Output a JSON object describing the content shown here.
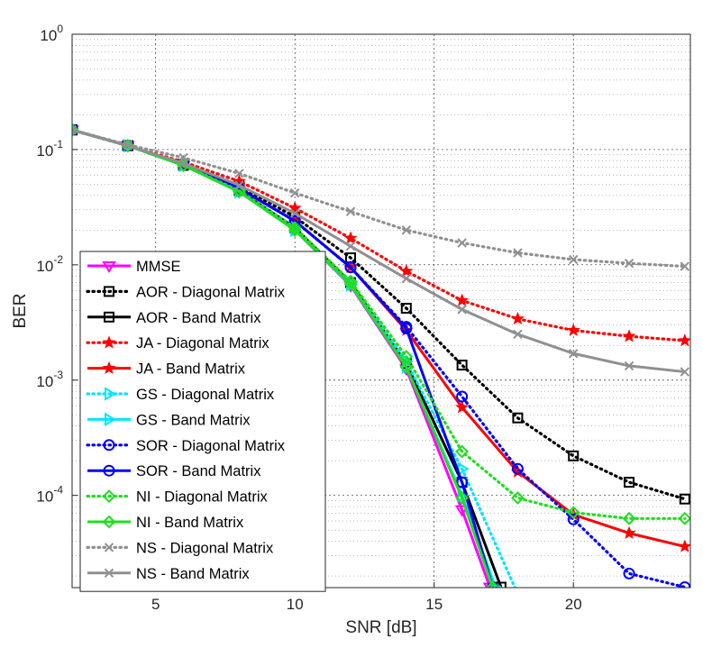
{
  "chart_data": {
    "type": "line",
    "xlabel": "SNR [dB]",
    "ylabel": "BER",
    "yscale": "log",
    "xlim": [
      2,
      24.2
    ],
    "ylim_log10": [
      -4.8,
      0
    ],
    "xticks": [
      5,
      10,
      15,
      20
    ],
    "yticks": [
      {
        "exp": 0,
        "base": "10",
        "sup": "0"
      },
      {
        "exp": -1,
        "base": "10",
        "sup": "-1"
      },
      {
        "exp": -2,
        "base": "10",
        "sup": "-2"
      },
      {
        "exp": -3,
        "base": "10",
        "sup": "-3"
      },
      {
        "exp": -4,
        "base": "10",
        "sup": "-4"
      }
    ],
    "grid": true,
    "legend_position": "bottom-left",
    "series": [
      {
        "name": "MMSE",
        "color": "#ff00ff",
        "style": "solid",
        "marker": "triangle-down",
        "x": [
          2,
          4,
          6,
          8,
          10,
          12,
          14,
          16,
          17.0
        ],
        "y": [
          0.148,
          0.108,
          0.073,
          0.043,
          0.02,
          0.0066,
          0.00125,
          7.5e-05,
          1.6e-05
        ]
      },
      {
        "name": "AOR - Diagonal Matrix",
        "color": "#000000",
        "style": "dotted",
        "marker": "square",
        "x": [
          2,
          4,
          6,
          8,
          10,
          12,
          14,
          16,
          18,
          20,
          22,
          24
        ],
        "y": [
          0.148,
          0.108,
          0.075,
          0.048,
          0.026,
          0.0115,
          0.0042,
          0.00135,
          0.00047,
          0.00022,
          0.00013,
          9.3e-05
        ]
      },
      {
        "name": "AOR - Band Matrix",
        "color": "#000000",
        "style": "solid",
        "marker": "square",
        "x": [
          2,
          4,
          6,
          8,
          10,
          12,
          14,
          16,
          17.4
        ],
        "y": [
          0.148,
          0.108,
          0.073,
          0.044,
          0.021,
          0.007,
          0.0014,
          0.00013,
          1.6e-05
        ]
      },
      {
        "name": "JA - Diagonal Matrix",
        "color": "#ff0000",
        "style": "dotted",
        "marker": "star",
        "x": [
          2,
          4,
          6,
          8,
          10,
          12,
          14,
          16,
          18,
          20,
          22,
          24
        ],
        "y": [
          0.148,
          0.108,
          0.078,
          0.053,
          0.031,
          0.017,
          0.0088,
          0.0049,
          0.0034,
          0.0027,
          0.0024,
          0.0022
        ]
      },
      {
        "name": "JA - Band Matrix",
        "color": "#ff0000",
        "style": "solid",
        "marker": "star",
        "x": [
          2,
          4,
          6,
          8,
          10,
          12,
          14,
          16,
          18,
          20,
          22,
          24
        ],
        "y": [
          0.148,
          0.108,
          0.075,
          0.046,
          0.024,
          0.0095,
          0.0027,
          0.00058,
          0.00016,
          6.8e-05,
          4.7e-05,
          3.6e-05
        ]
      },
      {
        "name": "GS - Diagonal Matrix",
        "color": "#00e5ff",
        "style": "dotted",
        "marker": "triangle-right",
        "x": [
          2,
          4,
          6,
          8,
          10,
          12,
          14,
          16,
          18
        ],
        "y": [
          0.148,
          0.108,
          0.073,
          0.044,
          0.021,
          0.007,
          0.00145,
          0.00017,
          1.4e-05
        ]
      },
      {
        "name": "GS - Band Matrix",
        "color": "#00e5ff",
        "style": "solid",
        "marker": "triangle-right",
        "x": [
          2,
          4,
          6,
          8,
          10,
          12,
          14,
          16,
          17.2
        ],
        "y": [
          0.148,
          0.108,
          0.073,
          0.043,
          0.02,
          0.0067,
          0.0013,
          0.0001,
          1.6e-05
        ]
      },
      {
        "name": "SOR - Diagonal Matrix",
        "color": "#0000ff",
        "style": "dotted",
        "marker": "circle",
        "x": [
          2,
          4,
          6,
          8,
          10,
          12,
          14,
          16,
          18,
          20,
          22,
          24
        ],
        "y": [
          0.148,
          0.108,
          0.075,
          0.046,
          0.024,
          0.0095,
          0.0029,
          0.00072,
          0.00017,
          6.2e-05,
          2.1e-05,
          1.6e-05
        ]
      },
      {
        "name": "SOR - Band Matrix",
        "color": "#0000ff",
        "style": "solid",
        "marker": "circle",
        "x": [
          2,
          4,
          6,
          8,
          10,
          12,
          14,
          16,
          17.1
        ],
        "y": [
          0.148,
          0.108,
          0.075,
          0.046,
          0.024,
          0.0095,
          0.0028,
          0.00013,
          1.6e-05
        ]
      },
      {
        "name": "NI - Diagonal Matrix",
        "color": "#22dd22",
        "style": "dotted",
        "marker": "diamond",
        "x": [
          2,
          4,
          6,
          8,
          10,
          12,
          14,
          16,
          18,
          20,
          22,
          24
        ],
        "y": [
          0.148,
          0.108,
          0.073,
          0.044,
          0.021,
          0.0072,
          0.0016,
          0.00024,
          9.5e-05,
          7.1e-05,
          6.3e-05,
          6.3e-05
        ]
      },
      {
        "name": "NI - Band Matrix",
        "color": "#22dd22",
        "style": "solid",
        "marker": "diamond",
        "x": [
          2,
          4,
          6,
          8,
          10,
          12,
          14,
          16,
          17.1
        ],
        "y": [
          0.148,
          0.108,
          0.073,
          0.043,
          0.02,
          0.0068,
          0.0013,
          9.5e-05,
          1.6e-05
        ]
      },
      {
        "name": "NS - Diagonal Matrix",
        "color": "#909090",
        "style": "dotted",
        "marker": "x",
        "x": [
          2,
          4,
          6,
          8,
          10,
          12,
          14,
          16,
          18,
          20,
          22,
          24
        ],
        "y": [
          0.148,
          0.11,
          0.085,
          0.062,
          0.042,
          0.029,
          0.02,
          0.0155,
          0.0127,
          0.0111,
          0.0103,
          0.0097
        ]
      },
      {
        "name": "NS - Band Matrix",
        "color": "#909090",
        "style": "solid",
        "marker": "x",
        "x": [
          2,
          4,
          6,
          8,
          10,
          12,
          14,
          16,
          18,
          20,
          22,
          24
        ],
        "y": [
          0.148,
          0.108,
          0.076,
          0.049,
          0.028,
          0.0145,
          0.0076,
          0.0041,
          0.0025,
          0.0017,
          0.00133,
          0.00118
        ]
      }
    ]
  }
}
